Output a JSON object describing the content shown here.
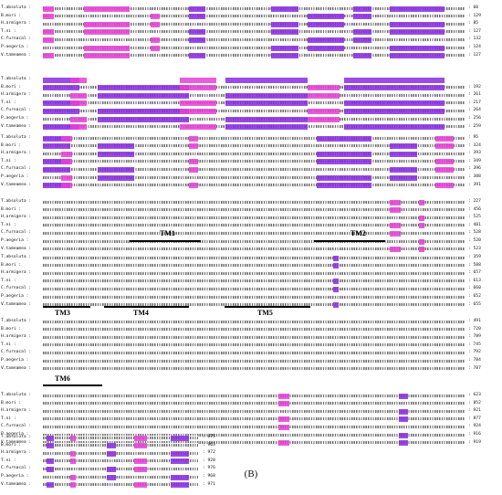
{
  "species": [
    "T.absoluta",
    "B.mori",
    "H.armigera",
    "T.ni",
    "C.furnacal",
    "P.aegeria",
    "V.tameamea"
  ],
  "colors": {
    "identical": "#000000",
    "conserved": "#e83fd6",
    "similar": "#8a2be2",
    "background": "#ffffff"
  },
  "blocks": [
    {
      "numbers": [
        "60",
        "129",
        "85",
        "127",
        "132",
        "124",
        "127"
      ]
    },
    {
      "numbers": [
        "",
        "192",
        "261",
        "217",
        "264",
        "256",
        "259"
      ]
    },
    {
      "numbers": [
        "95",
        "324",
        "393",
        "349",
        "396",
        "388",
        "391"
      ]
    },
    {
      "numbers": [
        "227",
        "456",
        "525",
        "481",
        "528",
        "520",
        "523"
      ]
    },
    {
      "numbers": [
        "359",
        "588",
        "657",
        "613",
        "660",
        "652",
        "655"
      ]
    },
    {
      "numbers": [
        "491",
        "720",
        "789",
        "745",
        "792",
        "784",
        "787"
      ]
    },
    {
      "numbers": [
        "623",
        "852",
        "921",
        "877",
        "924",
        "916",
        "919"
      ]
    },
    {
      "numbers": [
        "675",
        "903",
        "972",
        "928",
        "976",
        "968",
        "971"
      ]
    }
  ],
  "tm_labels": [
    "TM1",
    "TM2",
    "TM3",
    "TM4",
    "TM5",
    "TM6"
  ],
  "caption": "(B)"
}
